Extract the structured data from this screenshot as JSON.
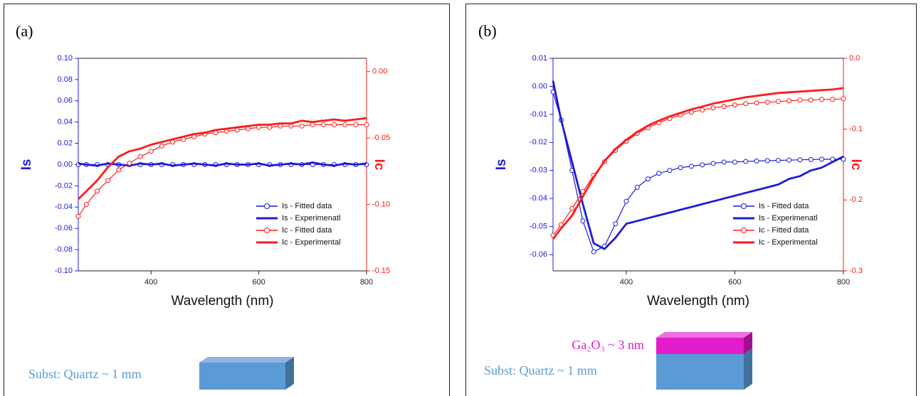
{
  "chart_data": [
    {
      "type": "line",
      "panel_label": "(a)",
      "xlabel": "Wavelength (nm)",
      "ylabel": "Is",
      "y2label": "Ic",
      "x": [
        265,
        280,
        300,
        320,
        340,
        360,
        380,
        400,
        420,
        440,
        460,
        480,
        500,
        520,
        540,
        560,
        580,
        600,
        620,
        640,
        660,
        680,
        700,
        720,
        740,
        760,
        780,
        800
      ],
      "xlim": [
        265,
        800
      ],
      "xticks": [
        400,
        600,
        800
      ],
      "ylim": [
        -0.1,
        0.1
      ],
      "yticks": [
        {
          "value": 0.1,
          "label": "0.10"
        },
        0.08,
        0.06,
        0.04,
        0.02,
        {
          "value": 0,
          "label": "0.00"
        },
        -0.02,
        -0.04,
        -0.06,
        -0.08,
        {
          "value": -0.1,
          "label": "-0.10"
        }
      ],
      "y2lim": [
        -0.15,
        0.01
      ],
      "y2ticks": [
        {
          "value": 0,
          "label": "0.00"
        },
        -0.05,
        {
          "value": -0.1,
          "label": "-0.10"
        },
        -0.15
      ],
      "legend": "lower right",
      "series": [
        {
          "name": "Is - Fitted data",
          "color": "#1c1cd8",
          "marker": "circle",
          "axis": "y",
          "values": [
            0,
            0,
            0,
            0,
            0,
            0,
            0,
            0,
            0,
            0,
            0,
            0,
            0,
            0,
            0,
            0,
            0,
            0,
            0,
            0,
            0,
            0,
            0,
            0,
            0,
            0,
            0,
            0
          ]
        },
        {
          "name": "Is - Experimenatl",
          "color": "#1c1cd8",
          "marker": "none",
          "axis": "y",
          "values": [
            0.001,
            0,
            -0.001,
            0.001,
            0,
            -0.001,
            0.001,
            0,
            0.001,
            -0.001,
            0,
            0.001,
            0,
            -0.001,
            0.001,
            0,
            0,
            0.001,
            -0.001,
            0,
            0.001,
            0,
            0.002,
            0,
            -0.001,
            0.001,
            0,
            0.001
          ]
        },
        {
          "name": "Ic - Fitted data",
          "color": "#ff1a1a",
          "marker": "circle",
          "axis": "y2",
          "values": [
            -0.109,
            -0.1,
            -0.09,
            -0.082,
            -0.074,
            -0.069,
            -0.064,
            -0.06,
            -0.056,
            -0.053,
            -0.051,
            -0.049,
            -0.047,
            -0.046,
            -0.045,
            -0.044,
            -0.043,
            -0.042,
            -0.042,
            -0.041,
            -0.041,
            -0.041,
            -0.04,
            -0.04,
            -0.04,
            -0.04,
            -0.04,
            -0.04
          ]
        },
        {
          "name": "Ic - Experimental",
          "color": "#ff1a1a",
          "marker": "none",
          "axis": "y2",
          "values": [
            -0.096,
            -0.09,
            -0.082,
            -0.072,
            -0.064,
            -0.06,
            -0.058,
            -0.055,
            -0.053,
            -0.051,
            -0.049,
            -0.047,
            -0.046,
            -0.044,
            -0.043,
            -0.042,
            -0.041,
            -0.04,
            -0.04,
            -0.039,
            -0.039,
            -0.037,
            -0.038,
            -0.037,
            -0.036,
            -0.037,
            -0.036,
            -0.035
          ]
        }
      ],
      "substrate_labels": [
        "Subst: Quartz ~ 1 mm"
      ]
    },
    {
      "type": "line",
      "panel_label": "(b)",
      "xlabel": "Wavelength (nm)",
      "ylabel": "Is",
      "y2label": "Ic",
      "x": [
        265,
        280,
        300,
        320,
        340,
        360,
        380,
        400,
        420,
        440,
        460,
        480,
        500,
        520,
        540,
        560,
        580,
        600,
        620,
        640,
        660,
        680,
        700,
        720,
        740,
        760,
        780,
        800
      ],
      "xlim": [
        265,
        800
      ],
      "xticks": [
        400,
        600,
        800
      ],
      "ylim": [
        -0.0658,
        0.01
      ],
      "yticks": [
        0.01,
        {
          "value": 0,
          "label": "0.00"
        },
        -0.01,
        -0.02,
        -0.03,
        -0.04,
        -0.05,
        -0.06
      ],
      "y2lim": [
        -0.3,
        0
      ],
      "y2ticks": [
        {
          "value": 0,
          "label": "0.0"
        },
        -0.1,
        -0.2,
        -0.3
      ],
      "legend": "lower right",
      "series": [
        {
          "name": "Is - Fitted data",
          "color": "#1c1cd8",
          "marker": "circle",
          "axis": "y",
          "values": [
            -0.002,
            -0.012,
            -0.03,
            -0.048,
            -0.059,
            -0.057,
            -0.049,
            -0.041,
            -0.036,
            -0.033,
            -0.031,
            -0.03,
            -0.029,
            -0.0285,
            -0.028,
            -0.0275,
            -0.027,
            -0.027,
            -0.0268,
            -0.0266,
            -0.0265,
            -0.0264,
            -0.0263,
            -0.0262,
            -0.0261,
            -0.026,
            -0.026,
            -0.026
          ]
        },
        {
          "name": "Is - Experimenatl",
          "color": "#1c1cd8",
          "marker": "none",
          "axis": "y",
          "values": [
            0.002,
            -0.012,
            -0.027,
            -0.042,
            -0.056,
            -0.058,
            -0.054,
            -0.049,
            -0.048,
            -0.047,
            -0.046,
            -0.045,
            -0.044,
            -0.043,
            -0.042,
            -0.041,
            -0.04,
            -0.039,
            -0.038,
            -0.037,
            -0.036,
            -0.035,
            -0.033,
            -0.032,
            -0.03,
            -0.029,
            -0.027,
            -0.025
          ]
        },
        {
          "name": "Ic - Fitted data",
          "color": "#ff1a1a",
          "marker": "circle",
          "axis": "y2",
          "values": [
            -0.25,
            -0.235,
            -0.212,
            -0.188,
            -0.165,
            -0.146,
            -0.13,
            -0.117,
            -0.106,
            -0.098,
            -0.091,
            -0.085,
            -0.08,
            -0.076,
            -0.073,
            -0.07,
            -0.068,
            -0.066,
            -0.064,
            -0.063,
            -0.062,
            -0.061,
            -0.06,
            -0.059,
            -0.059,
            -0.058,
            -0.058,
            -0.057
          ]
        },
        {
          "name": "Ic - Experimental",
          "color": "#ff1a1a",
          "marker": "none",
          "axis": "y2",
          "values": [
            -0.255,
            -0.24,
            -0.222,
            -0.195,
            -0.168,
            -0.145,
            -0.128,
            -0.115,
            -0.104,
            -0.095,
            -0.088,
            -0.082,
            -0.077,
            -0.072,
            -0.068,
            -0.064,
            -0.061,
            -0.058,
            -0.055,
            -0.053,
            -0.051,
            -0.049,
            -0.048,
            -0.047,
            -0.046,
            -0.045,
            -0.044,
            -0.042
          ]
        }
      ],
      "substrate_labels": [
        "Ga₂O₃ ~ 3 nm",
        "Subst: Quartz ~ 1 mm"
      ]
    }
  ]
}
